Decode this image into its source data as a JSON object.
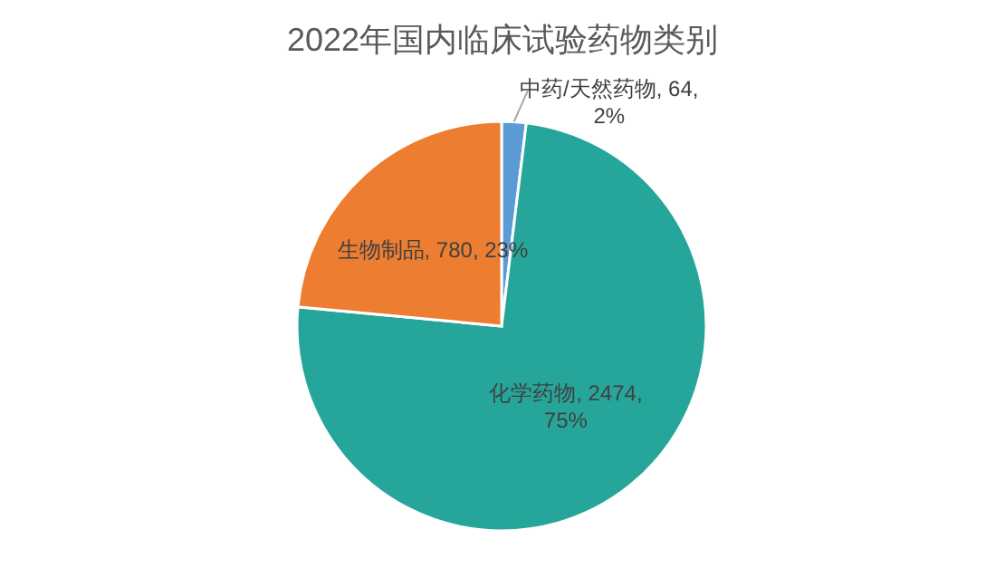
{
  "chart_data": {
    "type": "pie",
    "title": "2022年国内临床试验药物类别",
    "categories": [
      "中药/天然药物",
      "化学药物",
      "生物制品"
    ],
    "values": [
      64,
      2474,
      780
    ],
    "value_labels": [
      "64, 2%",
      "2474, 75%",
      "780, 23%"
    ],
    "colors": [
      "#5b9bd5",
      "#26a69a",
      "#ed7d31"
    ]
  }
}
